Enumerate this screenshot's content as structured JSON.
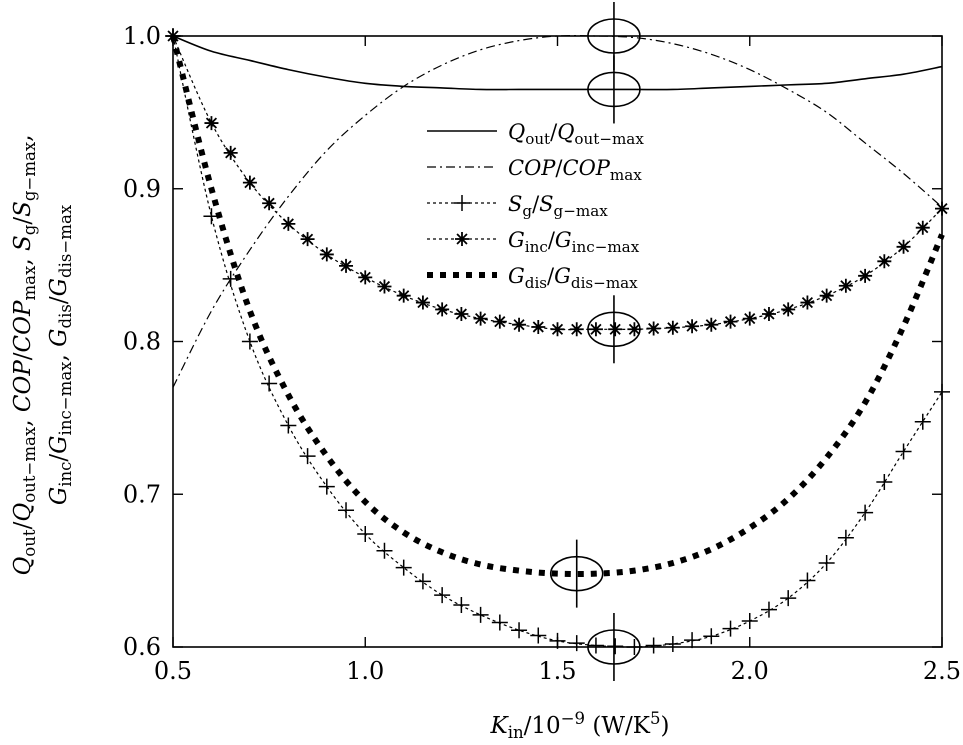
{
  "chart_data": {
    "type": "line",
    "xlabel": [
      [
        "K",
        "it"
      ],
      [
        "in",
        "sub"
      ],
      [
        "/10",
        ""
      ],
      [
        "−9",
        "sup"
      ],
      [
        " (W/K",
        ""
      ],
      [
        "5",
        "sup"
      ],
      [
        ")",
        ""
      ]
    ],
    "ylabel_line1": [
      [
        "Q",
        "it"
      ],
      [
        "out",
        "sub"
      ],
      [
        "/",
        ""
      ],
      [
        "Q",
        "it"
      ],
      [
        "out−max",
        "sub"
      ],
      [
        ", ",
        ""
      ],
      [
        "COP",
        "it"
      ],
      [
        "/",
        ""
      ],
      [
        "COP",
        "it"
      ],
      [
        "max",
        "sub"
      ],
      [
        ", ",
        ""
      ],
      [
        "S",
        "it"
      ],
      [
        "g",
        "sub"
      ],
      [
        "/",
        ""
      ],
      [
        "S",
        "it"
      ],
      [
        "g−max",
        "sub"
      ],
      [
        ",",
        ""
      ]
    ],
    "ylabel_line2": [
      [
        "G",
        "it"
      ],
      [
        "inc",
        "sub"
      ],
      [
        "/",
        ""
      ],
      [
        "G",
        "it"
      ],
      [
        "inc−max",
        "sub"
      ],
      [
        ", ",
        ""
      ],
      [
        "G",
        "it"
      ],
      [
        "dis",
        "sub"
      ],
      [
        "/",
        ""
      ],
      [
        "G",
        "it"
      ],
      [
        "dis−max",
        "sub"
      ]
    ],
    "xlim": [
      0.5,
      2.5
    ],
    "ylim": [
      0.6,
      1.0
    ],
    "xticks": [
      "0.5",
      "1.0",
      "1.5",
      "2.0",
      "2.5"
    ],
    "yticks": [
      "0.6",
      "0.7",
      "0.8",
      "0.9",
      "1.0"
    ],
    "legend_position": "center",
    "x": [
      0.5,
      0.6,
      0.7,
      0.8,
      0.9,
      1.0,
      1.1,
      1.2,
      1.3,
      1.4,
      1.5,
      1.6,
      1.7,
      1.8,
      1.9,
      2.0,
      2.1,
      2.2,
      2.3,
      2.4,
      2.5
    ],
    "series": [
      {
        "name": "Q_out/Q_out-max",
        "style": "solid",
        "marker": "none",
        "label": [
          [
            "Q",
            "it"
          ],
          [
            "out",
            "sub"
          ],
          [
            "/",
            ""
          ],
          [
            "Q",
            "it"
          ],
          [
            "out−max",
            "sub"
          ]
        ],
        "values": [
          1.0,
          0.99,
          0.984,
          0.978,
          0.973,
          0.969,
          0.967,
          0.966,
          0.965,
          0.965,
          0.965,
          0.965,
          0.965,
          0.965,
          0.966,
          0.967,
          0.968,
          0.969,
          0.972,
          0.975,
          0.98
        ]
      },
      {
        "name": "COP/COP_max",
        "style": "dashdot",
        "marker": "none",
        "label": [
          [
            "COP",
            "it"
          ],
          [
            "/",
            ""
          ],
          [
            "COP",
            "it"
          ],
          [
            "max",
            "sub"
          ]
        ],
        "values": [
          0.77,
          0.82,
          0.86,
          0.895,
          0.925,
          0.948,
          0.967,
          0.981,
          0.991,
          0.997,
          1.0,
          1.0,
          0.999,
          0.995,
          0.988,
          0.978,
          0.965,
          0.95,
          0.93,
          0.91,
          0.888
        ]
      },
      {
        "name": "S_g/S_g-max",
        "style": "dotted",
        "marker": "plus",
        "label": [
          [
            "S",
            "it"
          ],
          [
            "g",
            "sub"
          ],
          [
            "/",
            ""
          ],
          [
            "S",
            "it"
          ],
          [
            "g−max",
            "sub"
          ]
        ],
        "values": [
          1.0,
          0.882,
          0.8,
          0.745,
          0.705,
          0.674,
          0.652,
          0.634,
          0.621,
          0.611,
          0.604,
          0.601,
          0.6,
          0.602,
          0.607,
          0.617,
          0.632,
          0.655,
          0.688,
          0.728,
          0.767
        ]
      },
      {
        "name": "G_inc/G_inc-max",
        "style": "dotted",
        "marker": "star",
        "label": [
          [
            "G",
            "it"
          ],
          [
            "inc",
            "sub"
          ],
          [
            "/",
            ""
          ],
          [
            "G",
            "it"
          ],
          [
            "inc−max",
            "sub"
          ]
        ],
        "values": [
          1.0,
          0.943,
          0.904,
          0.877,
          0.857,
          0.842,
          0.83,
          0.821,
          0.815,
          0.811,
          0.808,
          0.808,
          0.808,
          0.809,
          0.811,
          0.815,
          0.821,
          0.83,
          0.843,
          0.862,
          0.887
        ]
      },
      {
        "name": "G_dis/G_dis-max",
        "style": "thickdot",
        "marker": "none",
        "label": [
          [
            "G",
            "it"
          ],
          [
            "dis",
            "sub"
          ],
          [
            "/",
            ""
          ],
          [
            "G",
            "it"
          ],
          [
            "dis−max",
            "sub"
          ]
        ],
        "values": [
          1.0,
          0.9,
          0.82,
          0.765,
          0.725,
          0.695,
          0.675,
          0.662,
          0.654,
          0.65,
          0.648,
          0.648,
          0.65,
          0.655,
          0.664,
          0.678,
          0.697,
          0.724,
          0.76,
          0.81,
          0.87
        ]
      }
    ],
    "annotations": [
      {
        "series": "COP/COP_max",
        "x": 1.6,
        "y": 1.0,
        "mark": "circled-optimum"
      },
      {
        "series": "Q_out/Q_out-max",
        "x": 1.6,
        "y": 0.965,
        "mark": "circled-optimum"
      },
      {
        "series": "G_inc/G_inc-max",
        "x": 1.6,
        "y": 0.808,
        "mark": "circled-optimum"
      },
      {
        "series": "G_dis/G_dis-max",
        "x": 1.55,
        "y": 0.648,
        "mark": "circled-optimum"
      },
      {
        "series": "S_g/S_g-max",
        "x": 1.6,
        "y": 0.6,
        "mark": "circled-optimum"
      }
    ]
  }
}
